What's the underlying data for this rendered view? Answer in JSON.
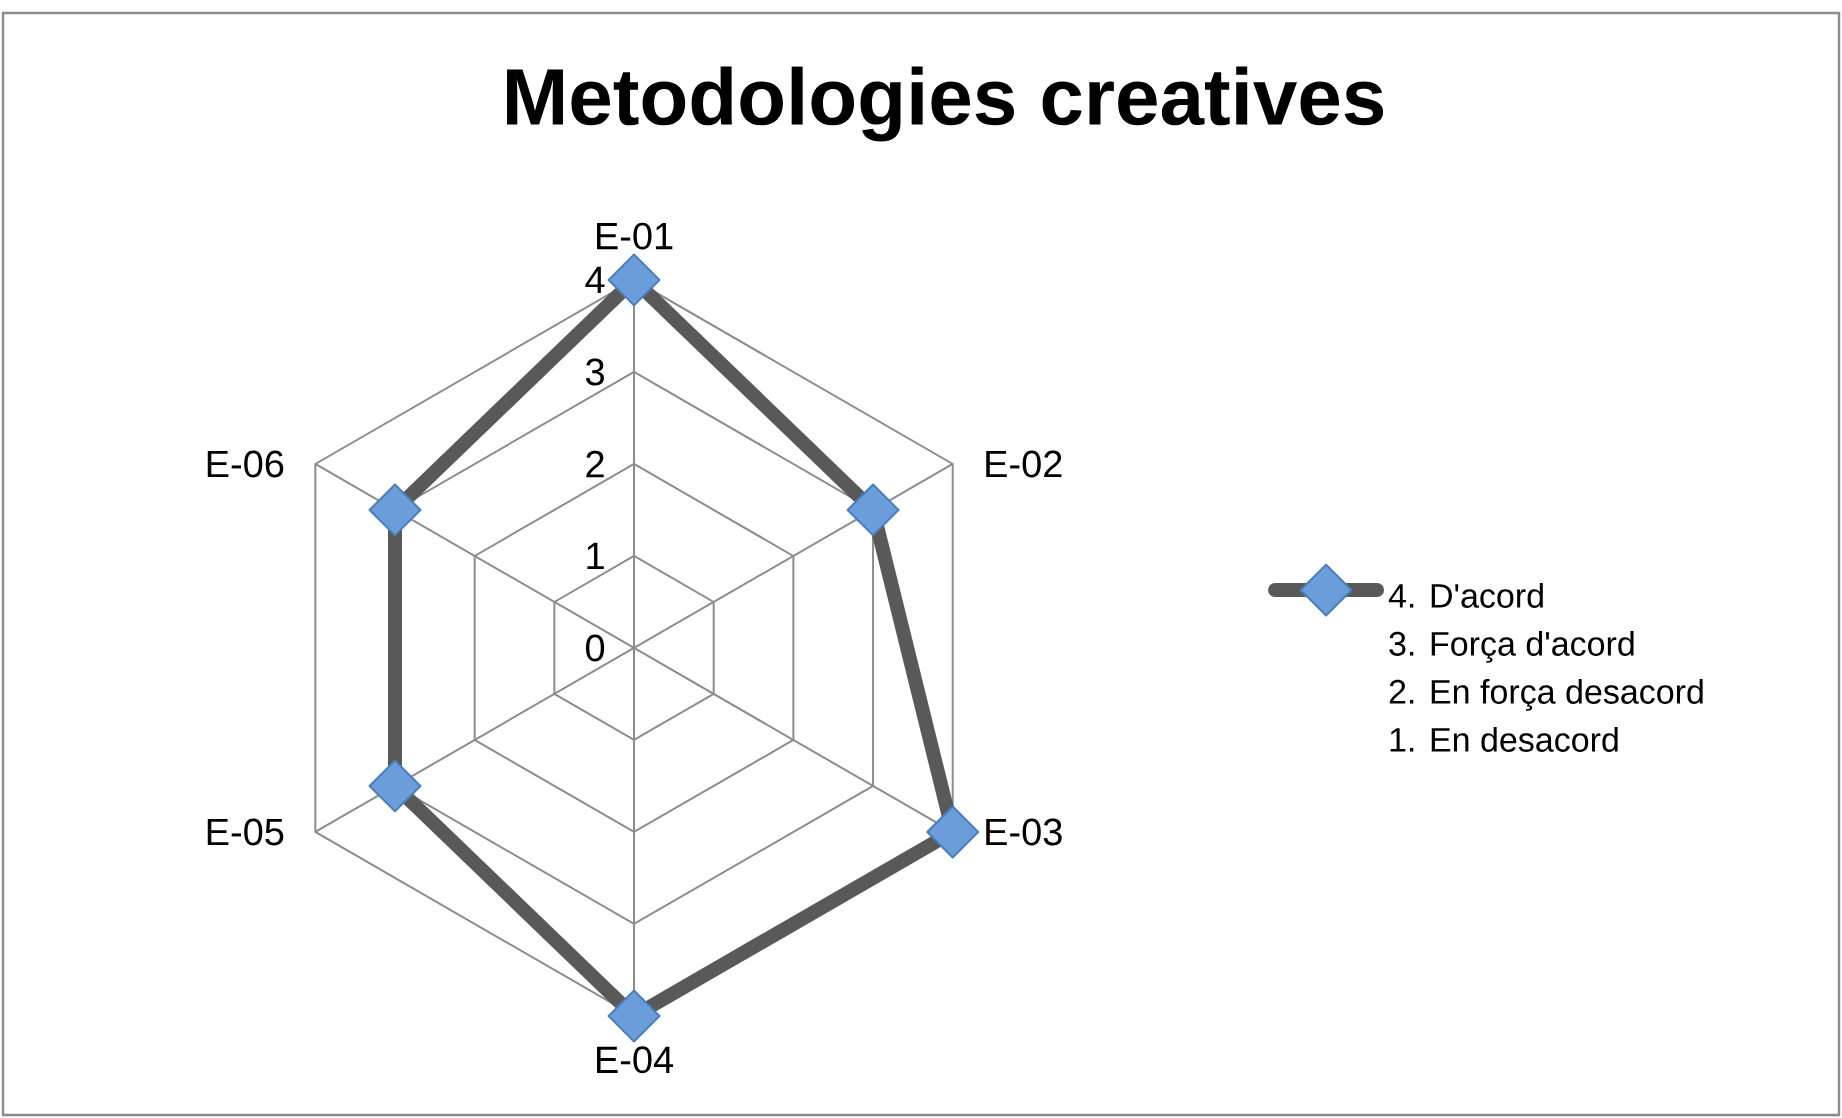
{
  "chart_data": {
    "type": "radar",
    "title": "Metodologies creatives",
    "categories": [
      "E-01",
      "E-02",
      "E-03",
      "E-04",
      "E-05",
      "E-06"
    ],
    "series": [
      {
        "name": "4. D'acord\n3. Força d'acord\n2. En força desacord\n1. En desacord",
        "color": "#595959",
        "values": [
          4,
          3,
          4,
          4,
          3,
          3
        ]
      }
    ],
    "ylim": [
      0,
      4
    ],
    "yticks": [
      0,
      1,
      2,
      3,
      4
    ],
    "grid": true,
    "legend": "right",
    "marker": "diamond",
    "line_style": "solid"
  }
}
